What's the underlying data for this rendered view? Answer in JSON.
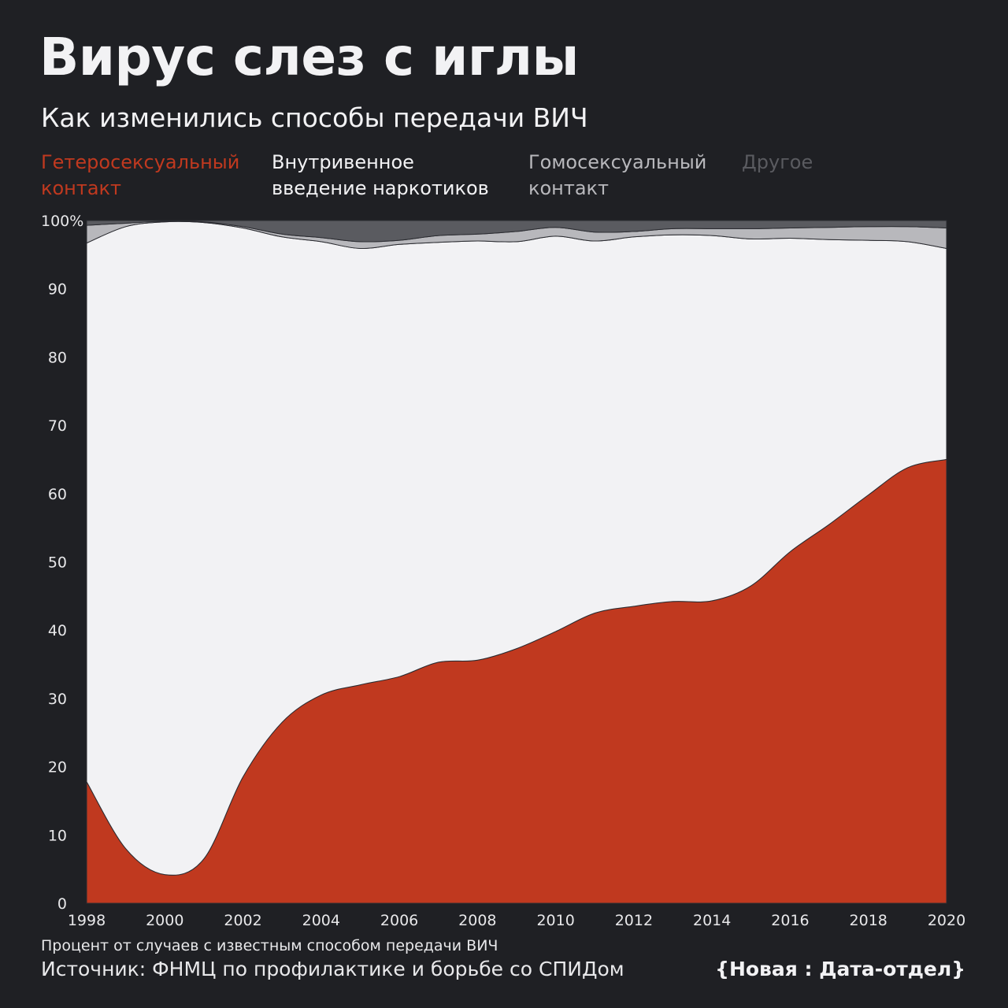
{
  "title": "Вирус слез с иглы",
  "subtitle": "Как изменились способы передачи ВИЧ",
  "footnote": "Процент от случаев с известным способом передачи ВИЧ",
  "source": "Источник: ФНМЦ по профилактике и борьбе со СПИДом",
  "brand": "{Новая : Дата-отдел}",
  "legend": [
    {
      "label": "Гетеросексуальный контакт",
      "color": "#c0391f"
    },
    {
      "label": "Внутривенное введение наркотиков",
      "color": "#f2f2f4"
    },
    {
      "label": "Гомосексуальный контакт",
      "color": "#b8b8bc"
    },
    {
      "label": "Другое",
      "color": "#5a5b60"
    }
  ],
  "chart_data": {
    "type": "area",
    "stacked": true,
    "x": [
      1998,
      1999,
      2000,
      2001,
      2002,
      2003,
      2004,
      2005,
      2006,
      2007,
      2008,
      2009,
      2010,
      2011,
      2012,
      2013,
      2014,
      2015,
      2016,
      2017,
      2018,
      2019,
      2020
    ],
    "series": [
      {
        "name": "Гетеросексуальный контакт",
        "color": "#c0391f",
        "values": [
          17.8,
          8.0,
          4.2,
          6.5,
          18.5,
          26.5,
          30.5,
          32.0,
          33.2,
          35.3,
          35.6,
          37.3,
          39.8,
          42.5,
          43.5,
          44.2,
          44.3,
          46.5,
          51.5,
          55.5,
          59.8,
          63.8,
          65.0
        ]
      },
      {
        "name": "Внутривенное введение наркотиков",
        "color": "#f2f2f4",
        "values": [
          78.9,
          91.1,
          95.6,
          93.2,
          80.4,
          71.1,
          66.4,
          63.9,
          63.3,
          61.5,
          61.4,
          59.6,
          57.9,
          54.5,
          54.1,
          53.7,
          53.5,
          50.8,
          45.9,
          41.7,
          37.3,
          33.1,
          30.9
        ]
      },
      {
        "name": "Гомосексуальный контакт",
        "color": "#b8b8bc",
        "values": [
          2.6,
          0.5,
          0.1,
          0.1,
          0.2,
          0.4,
          0.6,
          1.0,
          0.6,
          1.0,
          1.0,
          1.5,
          1.3,
          1.3,
          0.8,
          0.9,
          1.0,
          1.5,
          1.5,
          1.8,
          2.0,
          2.2,
          3.0
        ]
      },
      {
        "name": "Другое",
        "color": "#5a5b60",
        "values": [
          0.7,
          0.4,
          0.1,
          0.2,
          0.9,
          2.0,
          2.5,
          3.1,
          2.9,
          2.2,
          2.0,
          1.6,
          1.0,
          1.7,
          1.6,
          1.2,
          1.2,
          1.2,
          1.1,
          1.0,
          0.9,
          0.9,
          1.1
        ]
      }
    ],
    "x_ticks": [
      "1998",
      "2000",
      "2002",
      "2004",
      "2006",
      "2008",
      "2010",
      "2012",
      "2014",
      "2016",
      "2018",
      "2020"
    ],
    "y_ticks": [
      "0",
      "10",
      "20",
      "30",
      "40",
      "50",
      "60",
      "70",
      "80",
      "90",
      "100%"
    ],
    "xlim": [
      1998,
      2020
    ],
    "ylim": [
      0,
      100
    ],
    "grid": false,
    "legend_position": "top"
  }
}
